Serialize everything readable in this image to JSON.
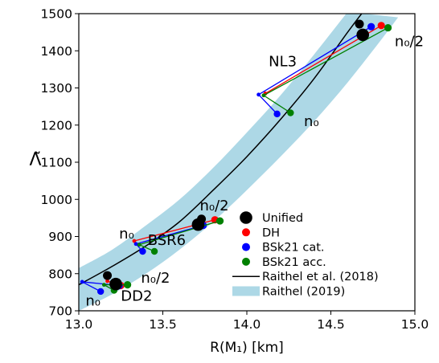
{
  "chart_data": {
    "type": "scatter",
    "xlabel": "R(M₁) [km]",
    "ylabel": "Λ̃",
    "xlim": [
      13.0,
      15.0
    ],
    "ylim": [
      700,
      1500
    ],
    "xticks": [
      13.0,
      13.5,
      14.0,
      14.5,
      15.0
    ],
    "yticks": [
      700,
      800,
      900,
      1000,
      1100,
      1200,
      1300,
      1400,
      1500
    ],
    "xtick_labels": [
      "13.0",
      "13.5",
      "14.0",
      "14.5",
      "15.0"
    ],
    "ytick_labels": [
      "700",
      "800",
      "900",
      "1000",
      "1100",
      "1200",
      "1300",
      "1400",
      "1500"
    ],
    "grid": false,
    "legend_position": "lower-right",
    "legend": [
      {
        "label": "Unified",
        "kind": "marker-large",
        "color": "#000000"
      },
      {
        "label": "DH",
        "kind": "marker",
        "color": "#ff0000"
      },
      {
        "label": "BSk21 cat.",
        "kind": "marker",
        "color": "#0000ff"
      },
      {
        "label": "BSk21 acc.",
        "kind": "marker",
        "color": "#008000"
      },
      {
        "label": "Raithel et al. (2018)",
        "kind": "line",
        "color": "#000000"
      },
      {
        "label": "Raithel (2019)",
        "kind": "band",
        "color": "#add8e6"
      }
    ],
    "raithel_2018_line": {
      "name": "Raithel et al. (2018)",
      "color": "#000000",
      "x": [
        13.0,
        13.2,
        13.4,
        13.6,
        13.8,
        14.0,
        14.2,
        14.4,
        14.6,
        14.7
      ],
      "y": [
        770,
        820,
        875,
        940,
        1025,
        1115,
        1215,
        1325,
        1450,
        1510
      ]
    },
    "raithel_2019_band": {
      "name": "Raithel (2019)",
      "color": "#add8e6",
      "upper": {
        "x": [
          13.0,
          13.2,
          13.4,
          13.6,
          13.8,
          14.0,
          14.2,
          14.4,
          14.6
        ],
        "y": [
          815,
          865,
          930,
          1000,
          1085,
          1180,
          1280,
          1390,
          1505
        ]
      },
      "lower": {
        "x": [
          13.0,
          13.2,
          13.4,
          13.6,
          13.8,
          14.0,
          14.2,
          14.4,
          14.6,
          14.8,
          14.9
        ],
        "y": [
          700,
          745,
          800,
          865,
          940,
          1025,
          1115,
          1210,
          1315,
          1430,
          1490
        ]
      }
    },
    "eos_groups": [
      {
        "eos": "DD2",
        "label": "DD2",
        "unified": {
          "x": 13.22,
          "y": 772
        },
        "unified_small": {
          "x": 13.17,
          "y": 795
        },
        "DH": {
          "n0": {
            "x": 13.17,
            "y": 780
          },
          "n0_2": {
            "x": 13.25,
            "y": 768
          }
        },
        "BSk21_cat": {
          "n0": {
            "x": 13.02,
            "y": 778
          },
          "n0_2": {
            "x": 13.24,
            "y": 768
          },
          "n0_low": {
            "x": 13.13,
            "y": 752
          }
        },
        "BSk21_acc": {
          "n0": {
            "x": 13.15,
            "y": 770
          },
          "n0_2": {
            "x": 13.29,
            "y": 770
          },
          "n0_low": {
            "x": 13.21,
            "y": 755
          }
        }
      },
      {
        "eos": "BSR6",
        "label": "BSR6",
        "unified": {
          "x": 13.71,
          "y": 932
        },
        "unified_small": {
          "x": 13.73,
          "y": 947
        },
        "DH": {
          "n0": {
            "x": 13.33,
            "y": 888
          },
          "n0_2": {
            "x": 13.81,
            "y": 945
          }
        },
        "BSk21_cat": {
          "n0": {
            "x": 13.34,
            "y": 880
          },
          "n0_2": {
            "x": 13.74,
            "y": 930
          },
          "n0_low": {
            "x": 13.38,
            "y": 860
          }
        },
        "BSk21_acc": {
          "n0": {
            "x": 13.36,
            "y": 878
          },
          "n0_2": {
            "x": 13.84,
            "y": 942
          },
          "n0_low": {
            "x": 13.45,
            "y": 860
          }
        }
      },
      {
        "eos": "NL3",
        "label": "NL3",
        "unified": {
          "x": 14.69,
          "y": 1443
        },
        "unified_small": {
          "x": 14.67,
          "y": 1472
        },
        "DH": {
          "n0": {
            "x": 14.11,
            "y": 1285
          },
          "n0_2": {
            "x": 14.8,
            "y": 1468
          }
        },
        "BSk21_cat": {
          "n0": {
            "x": 14.07,
            "y": 1282
          },
          "n0_2": {
            "x": 14.74,
            "y": 1465
          },
          "n0_low": {
            "x": 14.18,
            "y": 1230
          }
        },
        "BSk21_acc": {
          "n0": {
            "x": 14.1,
            "y": 1280
          },
          "n0_2": {
            "x": 14.84,
            "y": 1462
          },
          "n0_low": {
            "x": 14.26,
            "y": 1233
          }
        }
      }
    ],
    "annotations": [
      {
        "text": "NL3",
        "x": 14.13,
        "y": 1358
      },
      {
        "text": "n₀/2",
        "x": 14.88,
        "y": 1412
      },
      {
        "text": "n₀",
        "x": 14.34,
        "y": 1197
      },
      {
        "text": "n₀/2",
        "x": 13.72,
        "y": 970
      },
      {
        "text": "n₀",
        "x": 13.24,
        "y": 895
      },
      {
        "text": "BSR6",
        "x": 13.41,
        "y": 877
      },
      {
        "text": "n₀/2",
        "x": 13.37,
        "y": 776
      },
      {
        "text": "n₀",
        "x": 13.04,
        "y": 714
      },
      {
        "text": "DD2",
        "x": 13.25,
        "y": 727
      }
    ]
  }
}
